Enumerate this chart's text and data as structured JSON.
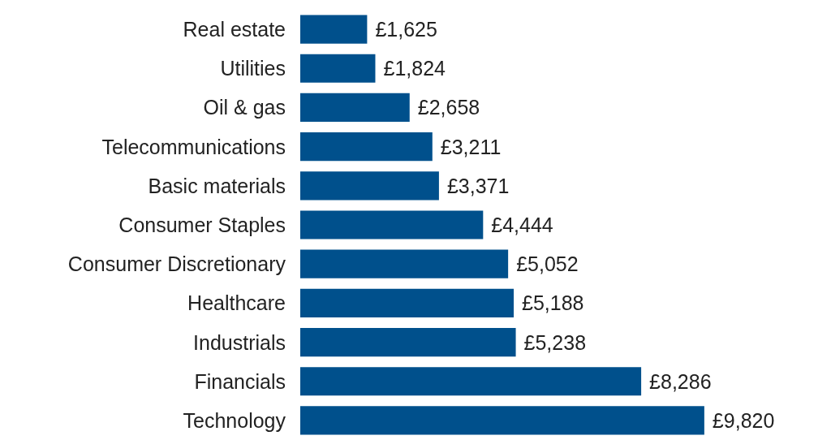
{
  "chart_data": {
    "type": "bar",
    "orientation": "horizontal",
    "categories": [
      "Real estate",
      "Utilities",
      "Oil & gas",
      "Telecommunications",
      "Basic materials",
      "Consumer Staples",
      "Consumer Discretionary",
      "Healthcare",
      "Industrials",
      "Financials",
      "Technology"
    ],
    "values": [
      1625,
      1824,
      2658,
      3211,
      3371,
      4444,
      5052,
      5188,
      5238,
      8286,
      9820
    ],
    "value_labels": [
      "£1,625",
      "£1,824",
      "£2,658",
      "£3,211",
      "£3,371",
      "£4,444",
      "£5,052",
      "£5,188",
      "£5,238",
      "£8,286",
      "£9,820"
    ],
    "color": "#00508c"
  }
}
